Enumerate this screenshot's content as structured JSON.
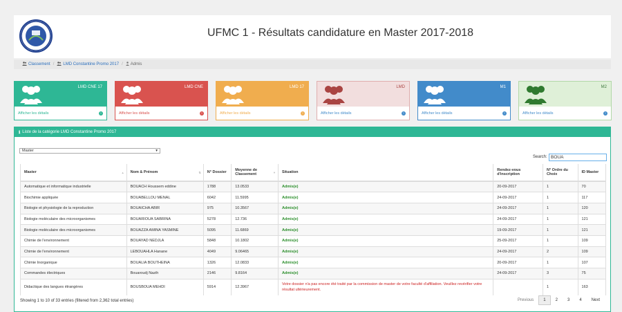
{
  "header": {
    "title": "UFMC 1 - Résultats candidature en Master 2017-2018"
  },
  "breadcrumb": {
    "items": [
      "Classement",
      "LMD Constantine Promo 2017"
    ],
    "active": "Admis"
  },
  "cards": [
    {
      "label": "LMD CNE 17",
      "link": "Afficher les détails",
      "color": "#2eb795"
    },
    {
      "label": "LMD CNE",
      "link": "Afficher les détails",
      "color": "#d9534f"
    },
    {
      "label": "LMD 17",
      "link": "Afficher les détails",
      "color": "#f0ad4e"
    },
    {
      "label": "LMD",
      "link": "Afficher les détails",
      "color": "#f2dede"
    },
    {
      "label": "M1",
      "link": "Afficher les détails",
      "color": "#428bca"
    },
    {
      "label": "M2",
      "link": "Afficher les détails",
      "color": "#dff0d8"
    }
  ],
  "panel": {
    "heading": "Liste de la catégorie LMD Constantine Promo 2017"
  },
  "filter": {
    "selected": "Master"
  },
  "search": {
    "label": "Search:",
    "value": "BOUA"
  },
  "table": {
    "headers": [
      "Master",
      "Nom & Prénom",
      "N° Dossier",
      "Moyenne de Classement",
      "Situation",
      "Rendez-vous d'inscription",
      "N° Ordre du Choix",
      "ID Master"
    ],
    "rows": [
      [
        "Automatique et informatique industrielle",
        "BOUACH Houssem eddine",
        "1788",
        "13.0533",
        "Admis(e)",
        "20-09-2017",
        "1",
        "70"
      ],
      [
        "Biochimie appliquée",
        "BOUABELLOU MENAL",
        "6042",
        "11.5995",
        "Admis(e)",
        "24-09-2017",
        "1",
        "117"
      ],
      [
        "Biologie et physiologie de la reproduction",
        "BOUAICHA ABIR",
        "975",
        "10.3567",
        "Admis(e)",
        "24-09-2017",
        "1",
        "120"
      ],
      [
        "Biologie moléculaire des microorganismes",
        "BOUARIOUA SABRINA",
        "5278",
        "12.736",
        "Admis(e)",
        "24-09-2017",
        "1",
        "121"
      ],
      [
        "Biologie moléculaire des microorganismes",
        "BOUAZZA AMINA YASMINE",
        "5095",
        "11.6869",
        "Admis(e)",
        "19-09-2017",
        "1",
        "121"
      ],
      [
        "Chimie de l'environnement",
        "BOUAYAD NEDJLA",
        "5848",
        "10.1802",
        "Admis(e)",
        "25-09-2017",
        "1",
        "109"
      ],
      [
        "Chimie de l'environnement",
        "LEBOUAHLA Hanane",
        "4049",
        "9.06465",
        "Admis(e)",
        "24-09-2017",
        "2",
        "109"
      ],
      [
        "Chimie Inorganique",
        "BOUALIA BOUTHEINA",
        "1326",
        "12.0833",
        "Admis(e)",
        "20-09-2017",
        "1",
        "107"
      ],
      [
        "Commandes électriques",
        "Bouaroudj Nazih",
        "2146",
        "9.8164",
        "Admis(e)",
        "24-09-2017",
        "3",
        "75"
      ],
      [
        "Didactique des langues étrangères",
        "BOUSBOUA MEHDI",
        "5914",
        "12.3967",
        "Votre dossier n'a pas encore été traité par la commission de master de votre faculté d'affiliation. Veuillez revérifier votre résultat ultérieurement.",
        "",
        "1",
        "163"
      ]
    ]
  },
  "footer": {
    "info": "Showing 1 to 10 of 33 entries (filtered from 2,362 total entries)",
    "pager": [
      "Previous",
      "1",
      "2",
      "3",
      "4",
      "Next"
    ]
  }
}
